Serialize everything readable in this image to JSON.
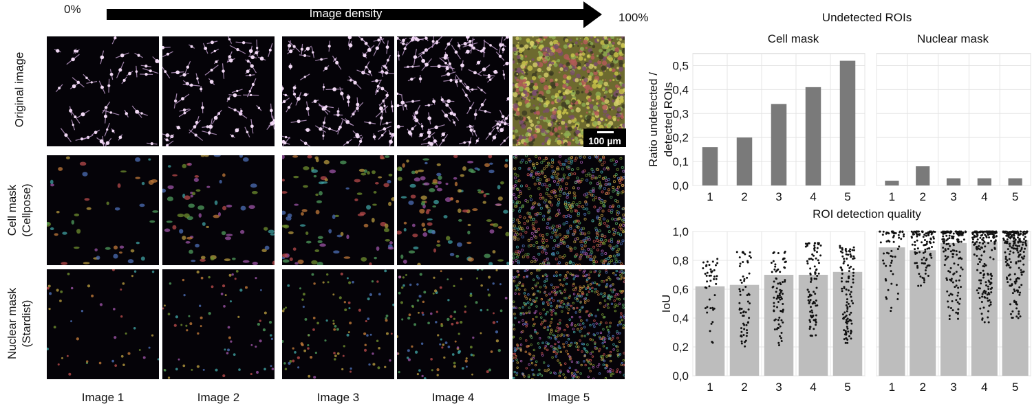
{
  "density_arrow": {
    "start": "0%",
    "label": "Image density",
    "end": "100%"
  },
  "row_labels": [
    "Original image",
    "Cell mask (Cellpose)",
    "Nuclear mask (Stardist)"
  ],
  "column_labels": [
    "Image 1",
    "Image 2",
    "Image 3",
    "Image 4",
    "Image 5"
  ],
  "scale_bar": "100 µm",
  "undetected_title": "Undetected ROIs",
  "detection_title": "ROI detection quality",
  "colors": {
    "bar_dark": "#7a7a7a",
    "bar_light": "#bdbdbd",
    "dot": "#111111",
    "grid": "#e4e4e4",
    "panel_border": "#cccccc"
  },
  "chart_data": [
    {
      "type": "bar",
      "title": "Cell mask",
      "ylabel": "Ratio undetected / detected ROIs",
      "categories": [
        "1",
        "2",
        "3",
        "4",
        "5"
      ],
      "values": [
        0.16,
        0.2,
        0.34,
        0.41,
        0.52
      ],
      "ylim": [
        0,
        0.55
      ],
      "yticks": [
        "0,0",
        "0,1",
        "0,2",
        "0,3",
        "0,4",
        "0,5"
      ],
      "grid": true
    },
    {
      "type": "bar",
      "title": "Nuclear mask",
      "categories": [
        "1",
        "2",
        "3",
        "4",
        "5"
      ],
      "values": [
        0.02,
        0.08,
        0.03,
        0.03,
        0.03
      ],
      "ylim": [
        0,
        0.55
      ],
      "grid": true
    },
    {
      "type": "bar",
      "ylabel": "IoU",
      "categories": [
        "1",
        "2",
        "3",
        "4",
        "5"
      ],
      "values": [
        0.62,
        0.63,
        0.7,
        0.7,
        0.72
      ],
      "ylim": [
        0,
        1.0
      ],
      "yticks": [
        "0,0",
        "0,2",
        "0,4",
        "0,6",
        "0,8",
        "1,0"
      ],
      "points": "individual ROI IoU values shown as dot strips over each bar",
      "grid": true
    },
    {
      "type": "bar",
      "categories": [
        "1",
        "2",
        "3",
        "4",
        "5"
      ],
      "values": [
        0.89,
        0.87,
        0.92,
        0.93,
        0.94
      ],
      "ylim": [
        0,
        1.0
      ],
      "points": "individual ROI IoU values shown as dot strips over each bar",
      "grid": true
    }
  ]
}
